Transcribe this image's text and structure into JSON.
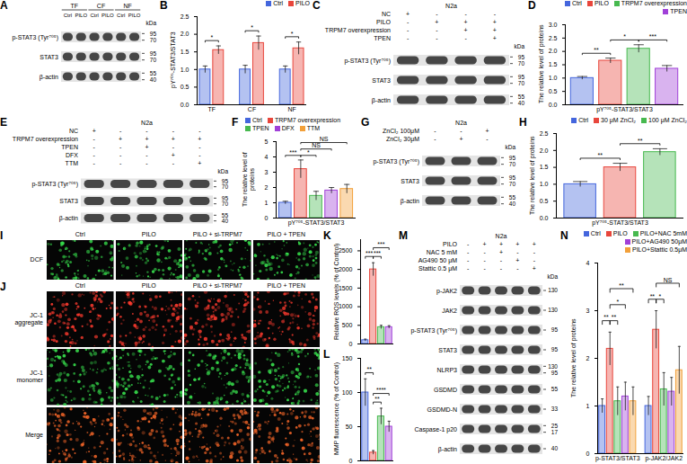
{
  "chart_data": [
    {
      "panel": "B",
      "type": "bar",
      "y_label": "pY⁷⁰⁵-STAT3/STAT3",
      "categories": [
        "TF",
        "CF",
        "NF"
      ],
      "series": [
        {
          "name": "Ctrl",
          "color": "#4466dd",
          "values": [
            1.0,
            1.0,
            1.0
          ],
          "errors": [
            0.1,
            0.12,
            0.1
          ]
        },
        {
          "name": "PILO",
          "color": "#e8463c",
          "values": [
            1.55,
            1.75,
            1.6
          ],
          "errors": [
            0.12,
            0.2,
            0.18
          ]
        }
      ],
      "ylim": [
        0,
        2.5
      ],
      "yticks": [
        {
          "value": 0,
          "label": "0.0"
        },
        {
          "value": 0.5,
          "label": "0.5"
        },
        {
          "value": 1,
          "label": "1.0"
        },
        {
          "value": 1.5,
          "label": "1.5"
        },
        {
          "value": 2,
          "label": "2.0"
        },
        {
          "value": 2.5,
          "label": "2.5"
        }
      ],
      "legend": "upper right",
      "annotations": [
        {
          "category": "TF",
          "pair": [
            0,
            1
          ],
          "text": "*"
        },
        {
          "category": "CF",
          "pair": [
            0,
            1
          ],
          "text": "*"
        },
        {
          "category": "NF",
          "pair": [
            0,
            1
          ],
          "text": "*"
        }
      ]
    },
    {
      "panel": "D",
      "type": "bar",
      "y_label": "The relative level of proteins",
      "categories": [
        "pY⁷⁰⁵-STAT3/STAT3"
      ],
      "series": [
        {
          "name": "Ctrl",
          "color": "#4466dd",
          "values": [
            1.0
          ],
          "errors": [
            0.06
          ]
        },
        {
          "name": "PILO",
          "color": "#e8463c",
          "values": [
            1.65
          ],
          "errors": [
            0.1
          ]
        },
        {
          "name": "TRPM7 overexpression",
          "color": "#47b94f",
          "values": [
            2.1
          ],
          "errors": [
            0.15
          ]
        },
        {
          "name": "TPEN",
          "color": "#a040d8",
          "values": [
            1.35
          ],
          "errors": [
            0.12
          ]
        }
      ],
      "ylim": [
        0,
        3
      ],
      "yticks": [
        {
          "value": 0,
          "label": "0.0"
        },
        {
          "value": 0.5,
          "label": "0.5"
        },
        {
          "value": 1,
          "label": "1.0"
        },
        {
          "value": 1.5,
          "label": "1.5"
        },
        {
          "value": 2,
          "label": "2.0"
        },
        {
          "value": 2.5,
          "label": "2.5"
        },
        {
          "value": 3,
          "label": "3.0"
        }
      ],
      "legend": "upper right",
      "annotations": [
        {
          "pair": [
            0,
            1
          ],
          "text": "**"
        },
        {
          "pair": [
            1,
            2
          ],
          "text": "*"
        },
        {
          "pair": [
            2,
            3
          ],
          "text": "***"
        }
      ]
    },
    {
      "panel": "F",
      "type": "bar",
      "y_label": "The relative level of proteins",
      "categories": [
        "pY⁷⁰⁵-STAT3/STAT3"
      ],
      "series": [
        {
          "name": "Ctrl",
          "color": "#4466dd",
          "values": [
            1.0
          ],
          "errors": [
            0.1
          ]
        },
        {
          "name": "TRPM7 overexpression",
          "color": "#e8463c",
          "values": [
            3.2
          ],
          "errors": [
            0.6
          ]
        },
        {
          "name": "TPEN",
          "color": "#47b94f",
          "values": [
            1.45
          ],
          "errors": [
            0.3
          ]
        },
        {
          "name": "DFX",
          "color": "#a040d8",
          "values": [
            1.8
          ],
          "errors": [
            0.2
          ]
        },
        {
          "name": "TTM",
          "color": "#f2a03a",
          "values": [
            1.9
          ],
          "errors": [
            0.3
          ]
        }
      ],
      "ylim": [
        0,
        5
      ],
      "yticks": [
        0,
        1,
        2,
        3,
        4,
        5
      ],
      "legend": "upper left",
      "annotations": [
        {
          "pair": [
            0,
            1
          ],
          "text": "***"
        },
        {
          "pair": [
            1,
            2
          ],
          "text": "*"
        },
        {
          "pair": [
            1,
            3
          ],
          "text": "NS"
        },
        {
          "pair": [
            1,
            4
          ],
          "text": "NS"
        }
      ]
    },
    {
      "panel": "H",
      "type": "bar",
      "y_label": "The relative level of proteins",
      "categories": [
        "pY⁷⁰⁵-STAT3/STAT3"
      ],
      "series": [
        {
          "name": "Ctrl",
          "color": "#4466dd",
          "values": [
            1.0
          ],
          "errors": [
            0.08
          ]
        },
        {
          "name": "30 μM ZnCl₂",
          "color": "#e8463c",
          "values": [
            1.5
          ],
          "errors": [
            0.12
          ]
        },
        {
          "name": "100 μM ZnCl₂",
          "color": "#47b94f",
          "values": [
            1.95
          ],
          "errors": [
            0.1
          ]
        }
      ],
      "ylim": [
        0,
        2.5
      ],
      "yticks": [
        {
          "value": 0,
          "label": "0.0"
        },
        {
          "value": 0.5,
          "label": "0.5"
        },
        {
          "value": 1,
          "label": "1.0"
        },
        {
          "value": 1.5,
          "label": "1.5"
        },
        {
          "value": 2,
          "label": "2.0"
        },
        {
          "value": 2.5,
          "label": "2.5"
        }
      ],
      "legend": "upper right",
      "annotations": [
        {
          "pair": [
            0,
            1
          ],
          "text": "**"
        },
        {
          "pair": [
            1,
            2
          ],
          "text": "**"
        }
      ]
    },
    {
      "panel": "K",
      "type": "bar",
      "y_label": "Relative ROS levels (% of Control)",
      "categories": [
        null,
        null,
        null,
        null
      ],
      "values": [
        100,
        2000,
        450,
        450
      ],
      "errors": [
        30,
        180,
        50,
        40
      ],
      "colors": [
        "#4466dd",
        "#e8463c",
        "#47b94f",
        "#a040d8"
      ],
      "ylim": [
        0,
        2800
      ],
      "yticks": [
        0,
        500,
        1000,
        1500,
        2000,
        2500
      ],
      "tick_labels": "y",
      "annotations": [
        {
          "pair": [
            0,
            1
          ],
          "text": "***"
        },
        {
          "pair": [
            1,
            2
          ],
          "text": "***"
        },
        {
          "pair": [
            1,
            3
          ],
          "text": "***"
        }
      ]
    },
    {
      "panel": "L",
      "type": "bar",
      "y_label": "MMP fluorescence (% of Control)",
      "categories": [
        null,
        null,
        null,
        null
      ],
      "values": [
        100,
        12,
        65,
        50
      ],
      "errors": [
        20,
        3,
        12,
        8
      ],
      "colors": [
        "#4466dd",
        "#e8463c",
        "#47b94f",
        "#a040d8"
      ],
      "ylim": [
        0,
        150
      ],
      "yticks": [
        0,
        50,
        100,
        150
      ],
      "tick_labels": "y",
      "annotations": [
        {
          "pair": [
            0,
            1
          ],
          "text": "**"
        },
        {
          "pair": [
            1,
            2
          ],
          "text": "**"
        },
        {
          "pair": [
            1,
            3
          ],
          "text": "****"
        }
      ]
    },
    {
      "panel": "N",
      "type": "bar",
      "y_label": "The relative level of proteins",
      "categories": [
        "p-STAT3/STAT3",
        "p-JAK2/JAK2"
      ],
      "series": [
        {
          "name": "Ctrl",
          "color": "#4466dd",
          "values": [
            1.0,
            1.0
          ],
          "errors": [
            0.15,
            0.2
          ]
        },
        {
          "name": "PILO",
          "color": "#e8463c",
          "values": [
            2.2,
            2.6
          ],
          "errors": [
            0.35,
            0.4
          ]
        },
        {
          "name": "PILO+NAC 5mM",
          "color": "#47b94f",
          "values": [
            1.1,
            1.35
          ],
          "errors": [
            0.3,
            0.35
          ]
        },
        {
          "name": "PILO+AG490 50μM",
          "color": "#a040d8",
          "values": [
            1.2,
            1.3
          ],
          "errors": [
            0.3,
            0.3
          ]
        },
        {
          "name": "PILO+Stattic 0.5μM",
          "color": "#f2a03a",
          "values": [
            1.1,
            1.75
          ],
          "errors": [
            0.3,
            0.5
          ]
        }
      ],
      "ylim": [
        0,
        4
      ],
      "yticks": [
        0,
        1,
        2,
        3,
        4
      ],
      "legend": "upper right",
      "annotations": [
        {
          "category": "p-STAT3/STAT3",
          "pair": [
            0,
            1
          ],
          "text": "**"
        },
        {
          "category": "p-STAT3/STAT3",
          "pair": [
            1,
            2
          ],
          "text": "**"
        },
        {
          "category": "p-STAT3/STAT3",
          "pair": [
            1,
            3
          ],
          "text": "*"
        },
        {
          "category": "p-STAT3/STAT3",
          "pair": [
            1,
            4
          ],
          "text": "**"
        },
        {
          "category": "p-JAK2/JAK2",
          "pair": [
            0,
            1
          ],
          "text": "**"
        },
        {
          "category": "p-JAK2/JAK2",
          "pair": [
            1,
            2
          ],
          "text": "*"
        },
        {
          "category": "p-JAK2/JAK2",
          "pair": [
            1,
            4
          ],
          "text": "NS"
        }
      ]
    }
  ],
  "blots": [
    {
      "panel": "A",
      "groups": [
        {
          "label": "TF",
          "lanes": [
            "Ctrl",
            "PILO"
          ]
        },
        {
          "label": "CF",
          "lanes": [
            "Ctrl",
            "PILO"
          ]
        },
        {
          "label": "NF",
          "lanes": [
            "Ctrl",
            "PILO"
          ]
        }
      ],
      "kda_label": "kDa",
      "bands": [
        {
          "label": "p-STAT3 (Tyr⁷⁰⁵)",
          "kda": [
            95,
            70
          ]
        },
        {
          "label": "STAT3",
          "kda": [
            95,
            70
          ]
        },
        {
          "label": "β-actin",
          "kda": [
            55,
            40
          ]
        }
      ]
    },
    {
      "panel": "C",
      "cell_line": "N2a",
      "conditions": [
        {
          "label": "NC",
          "signs": [
            "+",
            "-",
            "-",
            "-"
          ]
        },
        {
          "label": "PILO",
          "signs": [
            "-",
            "+",
            "+",
            "+"
          ]
        },
        {
          "label": "TRPM7 overexpression",
          "signs": [
            "-",
            "-",
            "+",
            "+"
          ]
        },
        {
          "label": "TPEN",
          "signs": [
            "-",
            "-",
            "-",
            "+"
          ]
        }
      ],
      "kda_label": "kDa",
      "bands": [
        {
          "label": "p-STAT3 (Tyr⁷⁰⁵)",
          "kda": [
            95,
            70
          ]
        },
        {
          "label": "STAT3",
          "kda": [
            95,
            70
          ]
        },
        {
          "label": "β-actin",
          "kda": [
            55,
            40
          ]
        }
      ]
    },
    {
      "panel": "E",
      "cell_line": "N2a",
      "conditions": [
        {
          "label": "NC",
          "signs": [
            "+",
            "-",
            "-",
            "-",
            "-"
          ]
        },
        {
          "label": "TRPM7 overexpression",
          "signs": [
            "-",
            "+",
            "+",
            "+",
            "+"
          ]
        },
        {
          "label": "TPEN",
          "signs": [
            "-",
            "-",
            "+",
            "-",
            "-"
          ]
        },
        {
          "label": "DFX",
          "signs": [
            "-",
            "-",
            "-",
            "+",
            "-"
          ]
        },
        {
          "label": "TTM",
          "signs": [
            "-",
            "-",
            "-",
            "-",
            "+"
          ]
        }
      ],
      "kda_label": "kDa",
      "bands": [
        {
          "label": "p-STAT3 (Tyr⁷⁰⁵)",
          "kda": [
            95,
            70
          ]
        },
        {
          "label": "STAT3",
          "kda": [
            95,
            70
          ]
        },
        {
          "label": "β-actin",
          "kda": [
            55,
            40
          ]
        }
      ]
    },
    {
      "panel": "G",
      "cell_line": "N2a",
      "conditions": [
        {
          "label": "ZnCl₂ 100μM",
          "signs": [
            "-",
            "-",
            "+"
          ]
        },
        {
          "label": "ZnCl₂ 30μM",
          "signs": [
            "-",
            "+",
            "-"
          ]
        }
      ],
      "kda_label": "kDa",
      "bands": [
        {
          "label": "p-STAT3 (Tyr⁷⁰⁵)",
          "kda": [
            95,
            70
          ]
        },
        {
          "label": "STAT3",
          "kda": [
            95,
            70
          ]
        },
        {
          "label": "β-actin",
          "kda": [
            55,
            40
          ]
        }
      ]
    },
    {
      "panel": "M",
      "cell_line": "N2a",
      "conditions": [
        {
          "label": "PILO",
          "signs": [
            "-",
            "+",
            "+",
            "+",
            "+"
          ]
        },
        {
          "label": "NAC 5 mM",
          "signs": [
            "-",
            "-",
            "+",
            "-",
            "-"
          ]
        },
        {
          "label": "AG490 50 μM",
          "signs": [
            "-",
            "-",
            "-",
            "+",
            "-"
          ]
        },
        {
          "label": "Stattic 0.5 μM",
          "signs": [
            "-",
            "-",
            "-",
            "-",
            "+"
          ]
        }
      ],
      "kda_label": "kDa",
      "bands": [
        {
          "label": "p-JAK2",
          "kda": [
            130
          ]
        },
        {
          "label": "JAK2",
          "kda": [
            130
          ]
        },
        {
          "label": "p-STAT3 (Tyr⁷⁰⁵)",
          "kda": [
            95
          ]
        },
        {
          "label": "STAT3",
          "kda": [
            95
          ]
        },
        {
          "label": "NLRP3",
          "kda": [
            130,
            95
          ]
        },
        {
          "label": "GSDMD",
          "kda": [
            55
          ]
        },
        {
          "label": "GSDMD-N",
          "kda": [
            33
          ]
        },
        {
          "label": "Caspase-1 p20",
          "kda": [
            25,
            17
          ]
        },
        {
          "label": "β-actin",
          "kda": [
            40
          ]
        }
      ]
    }
  ],
  "images": [
    {
      "panel": "I",
      "columns": [
        "Ctrl",
        "PILO",
        "PILO + si-TRPM7",
        "PILO + TPEN"
      ],
      "rows": [
        "DCF"
      ]
    },
    {
      "panel": "J",
      "columns": [
        "Ctrl",
        "PILO",
        "PILO + si-TRPM7",
        "PILO + TPEN"
      ],
      "rows": [
        "JC-1 aggregate",
        "JC-1 monomer",
        "Merge"
      ]
    }
  ]
}
